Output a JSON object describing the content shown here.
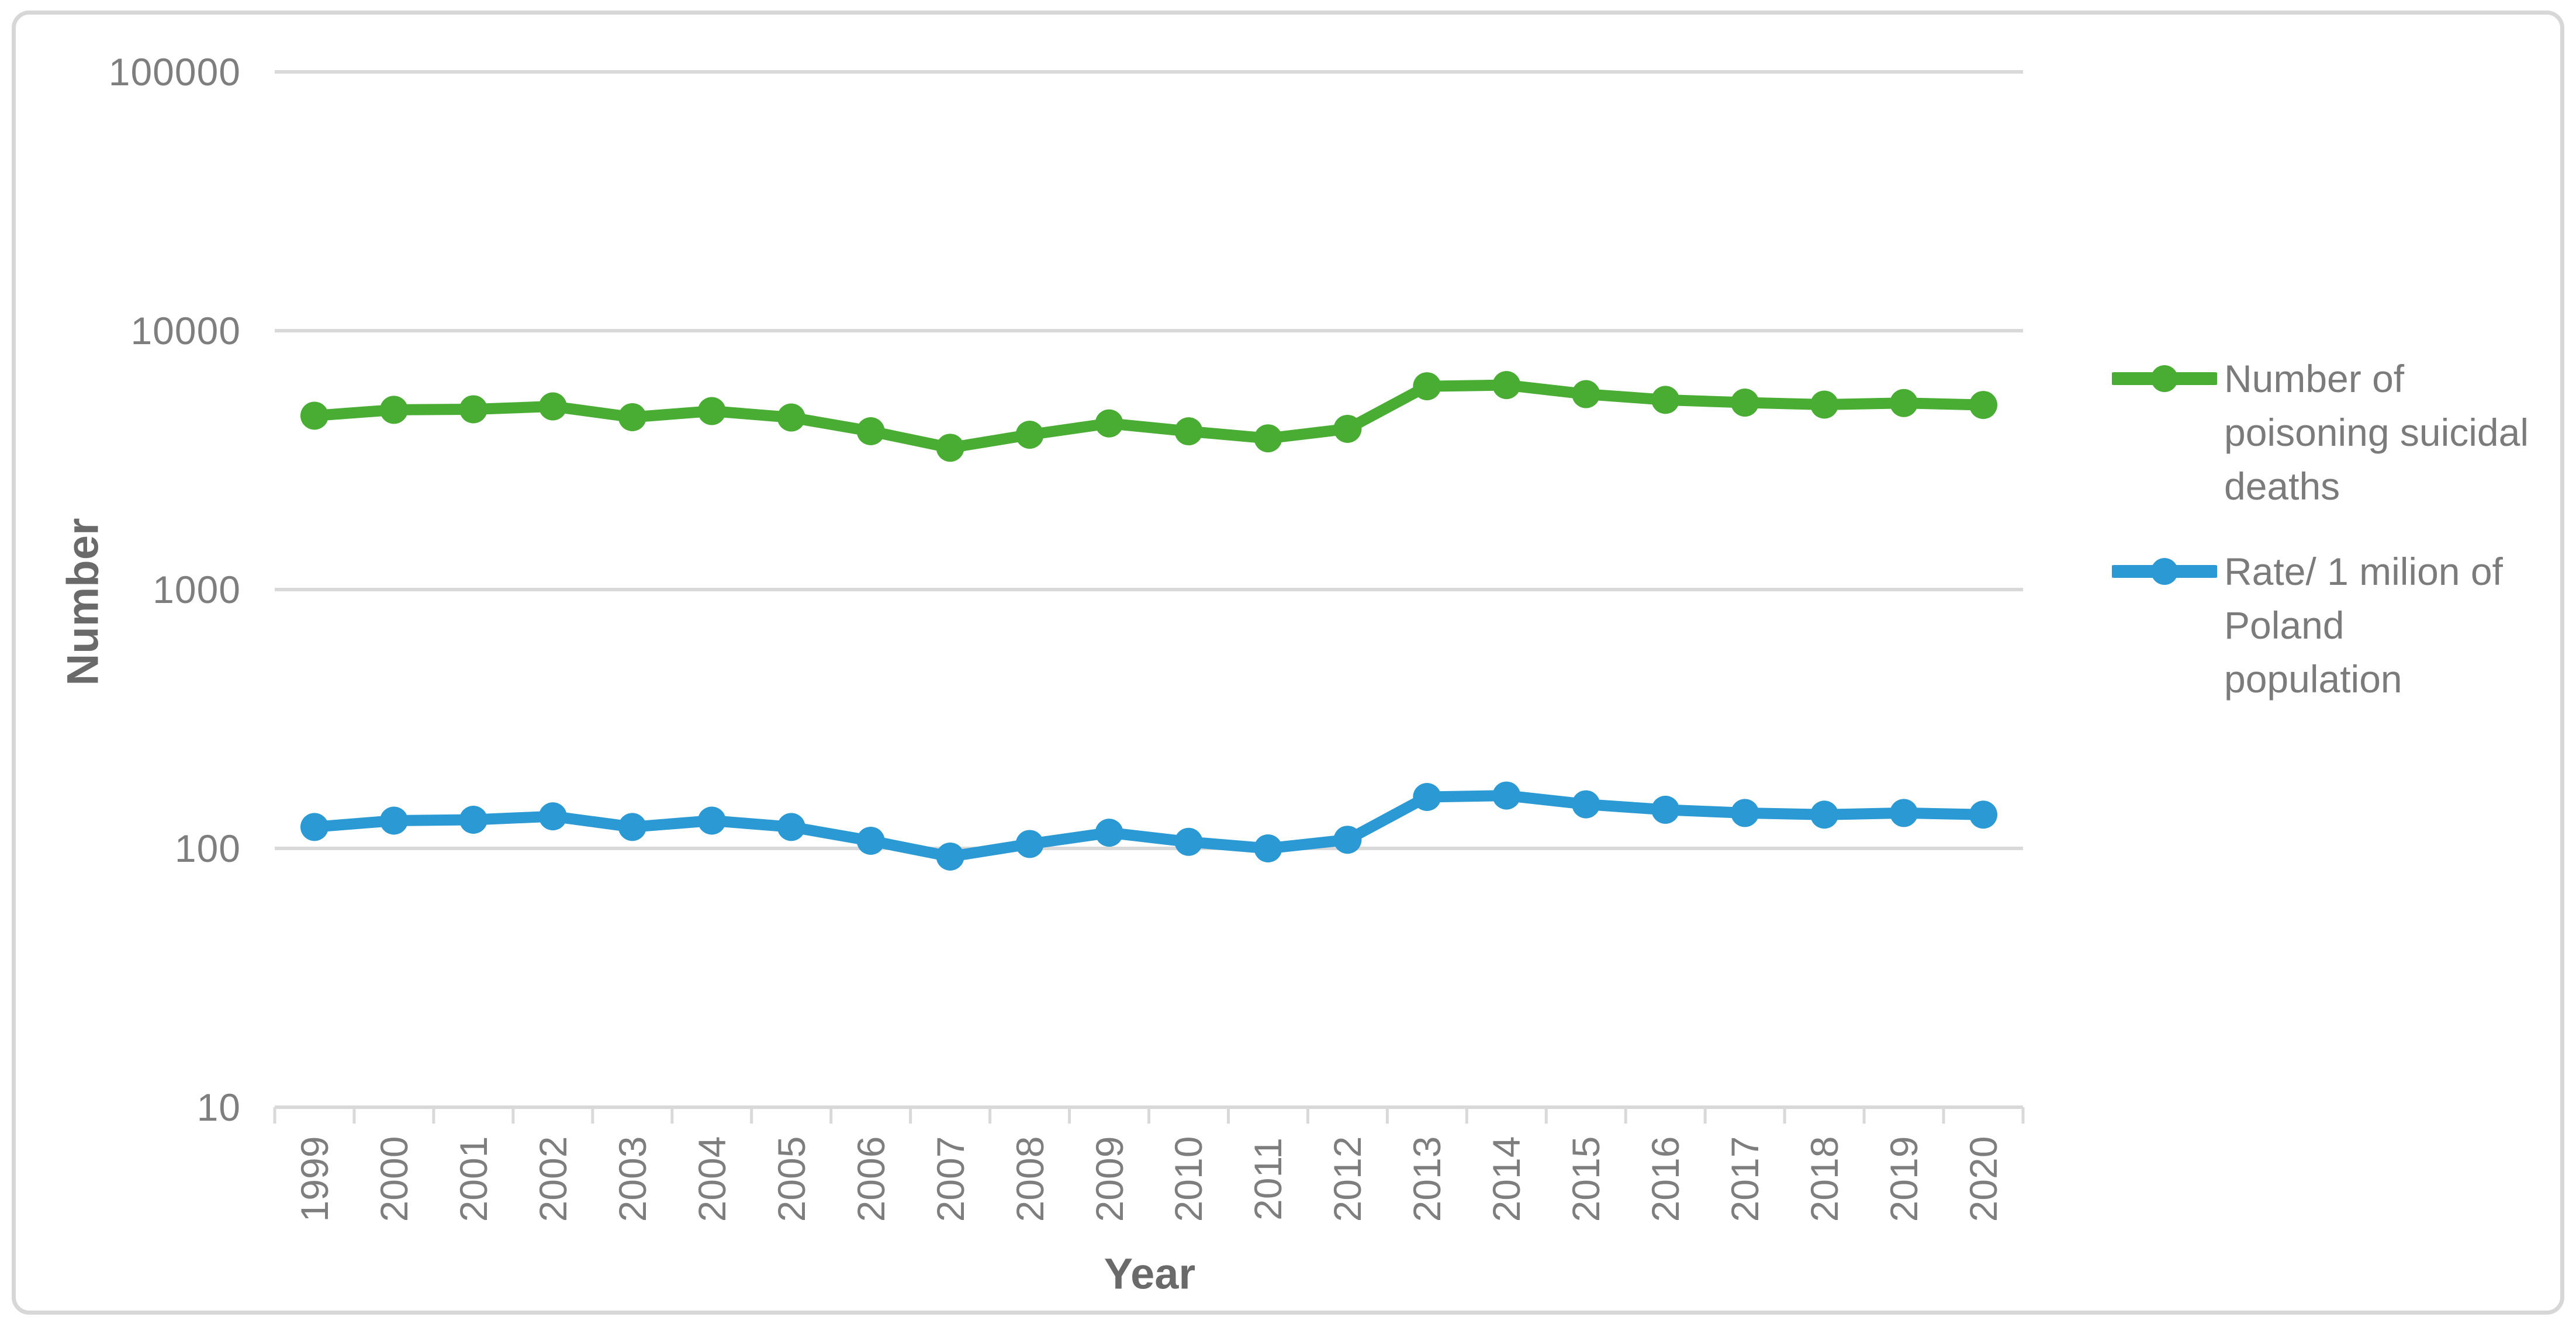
{
  "chart_data": {
    "type": "line",
    "title": "",
    "xlabel": "Year",
    "ylabel": "Number",
    "y_scale": "log",
    "ylim": [
      10,
      100000
    ],
    "y_ticks": [
      100000,
      10000,
      1000,
      100,
      10
    ],
    "grid": "horizontal",
    "legend_position": "right",
    "categories": [
      "1999",
      "2000",
      "2001",
      "2002",
      "2003",
      "2004",
      "2005",
      "2006",
      "2007",
      "2008",
      "2009",
      "2010",
      "2011",
      "2012",
      "2013",
      "2014",
      "2015",
      "2016",
      "2017",
      "2018",
      "2019",
      "2020"
    ],
    "series": [
      {
        "name": "Number of poisoning suicidal deaths",
        "color": "#48AD32",
        "values": [
          4695,
          4947,
          4971,
          5100,
          4634,
          4893,
          4621,
          4090,
          3530,
          3964,
          4384,
          4087,
          3839,
          4177,
          6101,
          6165,
          5688,
          5405,
          5276,
          5182,
          5255,
          5165
        ]
      },
      {
        "name": "Rate/ 1 milion of Poland population",
        "color": "#2A99D4",
        "values": [
          121,
          128,
          129,
          133,
          121,
          128,
          121,
          107,
          93,
          104,
          115,
          106,
          100,
          108,
          158,
          160,
          148,
          141,
          137,
          135,
          137,
          135
        ]
      }
    ]
  },
  "legend": {
    "entries": [
      {
        "label": "Number of poisoning suicidal deaths",
        "lines": [
          "Number of",
          "poisoning suicidal",
          "deaths"
        ],
        "color": "#48AD32"
      },
      {
        "label": "Rate/ 1 milion of Poland population",
        "lines": [
          "Rate/ 1 milion of",
          "Poland",
          "population"
        ],
        "color": "#2A99D4"
      }
    ]
  },
  "axes": {
    "y_title": "Number",
    "x_title": "Year"
  },
  "colors": {
    "background": "#FFFFFF",
    "border": "#D7D7D7",
    "grid": "#D9D9D9",
    "tick_text": "#7E7E7E",
    "axis_title_text": "#6A6A6A",
    "legend_text": "#7B7B7B"
  }
}
